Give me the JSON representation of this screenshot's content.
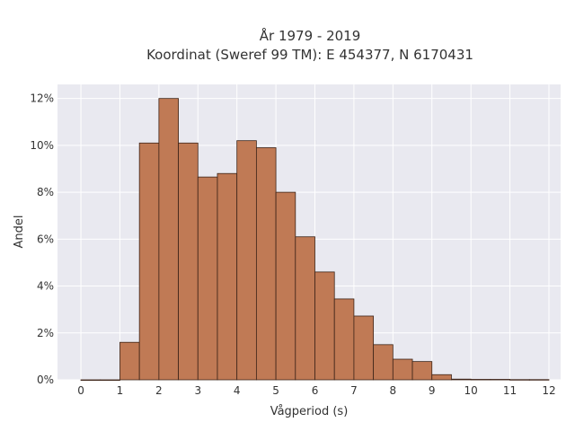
{
  "chart_data": {
    "type": "bar",
    "title": "År 1979 - 2019",
    "subtitle": "Koordinat (Sweref 99 TM): E 454377, N 6170431",
    "xlabel": "Vågperiod (s)",
    "ylabel": "Andel",
    "bin_width": 0.5,
    "bin_starts": [
      0,
      0.5,
      1,
      1.5,
      2,
      2.5,
      3,
      3.5,
      4,
      4.5,
      5,
      5.5,
      6,
      6.5,
      7,
      7.5,
      8,
      8.5,
      9,
      9.5,
      10,
      10.5,
      11,
      11.5
    ],
    "values": [
      0.0,
      0.0,
      1.6,
      10.1,
      12.0,
      10.1,
      8.65,
      8.8,
      10.2,
      9.9,
      8.0,
      6.1,
      4.6,
      3.45,
      2.72,
      1.5,
      0.88,
      0.78,
      0.22,
      0.03,
      0.02,
      0.02,
      0.01,
      0.01
    ],
    "xlim": [
      -0.6,
      12.3
    ],
    "ylim": [
      0,
      12.6
    ],
    "xticks": [
      "0",
      "1",
      "2",
      "3",
      "4",
      "5",
      "6",
      "7",
      "8",
      "9",
      "10",
      "11",
      "12"
    ],
    "yticks": [
      "0%",
      "2%",
      "4%",
      "6%",
      "8%",
      "10%",
      "12%"
    ],
    "grid": true,
    "colors": {
      "bar_fill": "#c07a55",
      "bar_edge": "#3d2418",
      "plot_bg": "#e9e9f0",
      "grid": "#ffffff"
    }
  }
}
